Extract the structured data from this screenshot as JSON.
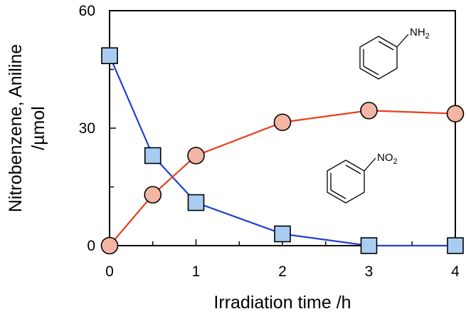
{
  "chart_data": {
    "type": "line",
    "xlabel": "Irradiation time /h",
    "ylabel_lines": [
      "Nitrobenzene, Aniline",
      "/µmol"
    ],
    "xlim": [
      0,
      4
    ],
    "ylim": [
      0,
      60
    ],
    "x_ticks": [
      0,
      1,
      2,
      3,
      4
    ],
    "y_ticks": [
      0,
      30,
      60
    ],
    "grid": false,
    "series": [
      {
        "marker": "square",
        "color": "#1f3fd6",
        "fill": "#a9cdf2",
        "x": [
          0,
          0.5,
          1,
          2,
          3,
          4
        ],
        "y": [
          48.5,
          23,
          11,
          3,
          0,
          0
        ]
      },
      {
        "marker": "circle",
        "color": "#e8401c",
        "fill": "#f3b5a4",
        "x": [
          0,
          0.5,
          1,
          2,
          3,
          4
        ],
        "y": [
          0,
          13,
          23,
          31.5,
          34.5,
          33.7
        ]
      }
    ],
    "annotations": [
      {
        "structure": "aniline",
        "label_main": "NH",
        "label_sub": "2"
      },
      {
        "structure": "nitrobenzene",
        "label_main": "NO",
        "label_sub": "2"
      }
    ]
  }
}
